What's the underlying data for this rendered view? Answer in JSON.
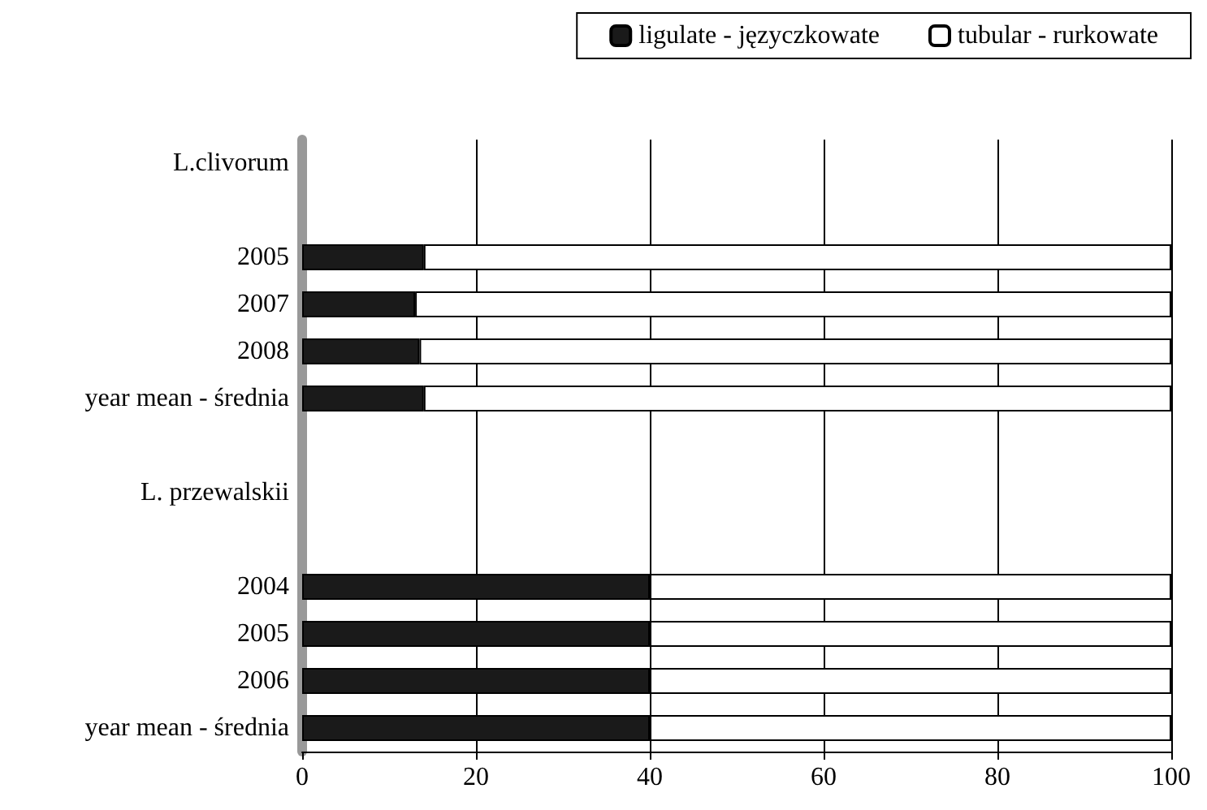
{
  "chart_data": {
    "type": "bar",
    "orientation": "horizontal",
    "stacked": true,
    "categories": [
      "L.clivorum",
      null,
      "2005",
      "2007",
      "2008",
      "year mean - średnia",
      null,
      "L. przewalskii",
      null,
      "2004",
      "2005",
      "2006",
      "year mean - średnia"
    ],
    "series": [
      {
        "name": "ligulate - języczkowate",
        "color": "#1a1a1a",
        "values": [
          null,
          null,
          14,
          13,
          13.5,
          14,
          null,
          null,
          null,
          40,
          40,
          40,
          40
        ]
      },
      {
        "name": "tubular - rurkowate",
        "color": "#ffffff",
        "values": [
          null,
          null,
          86,
          87,
          86.5,
          86,
          null,
          null,
          null,
          60,
          60,
          60,
          60
        ]
      }
    ],
    "xlim": [
      0,
      100
    ],
    "xticks": [
      0,
      20,
      40,
      60,
      80,
      100
    ],
    "grid": "x",
    "legend": "top right"
  }
}
